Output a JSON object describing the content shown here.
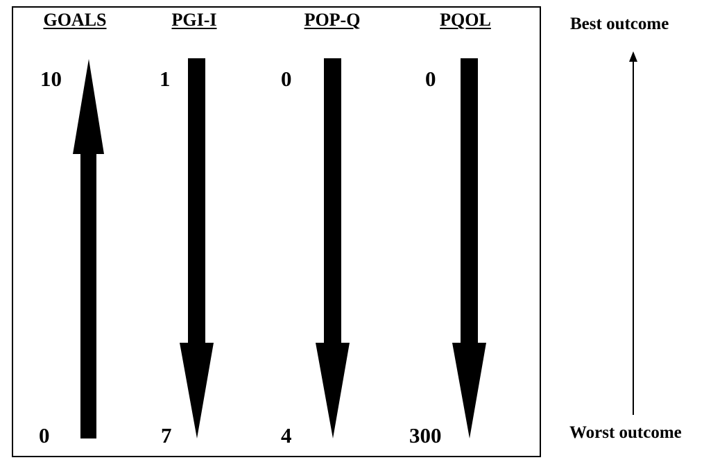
{
  "measures": [
    {
      "name": "GOALS",
      "top_value": "10",
      "bottom_value": "0",
      "direction": "up"
    },
    {
      "name": "PGI-I",
      "top_value": "1",
      "bottom_value": "7",
      "direction": "down"
    },
    {
      "name": "POP-Q",
      "top_value": "0",
      "bottom_value": "4",
      "direction": "down"
    },
    {
      "name": "PQOL",
      "top_value": "0",
      "bottom_value": "300",
      "direction": "down"
    }
  ],
  "legend": {
    "best_label": "Best outcome",
    "worst_label": "Worst outcome"
  },
  "colors": {
    "arrow": "#000000",
    "background": "#ffffff"
  }
}
